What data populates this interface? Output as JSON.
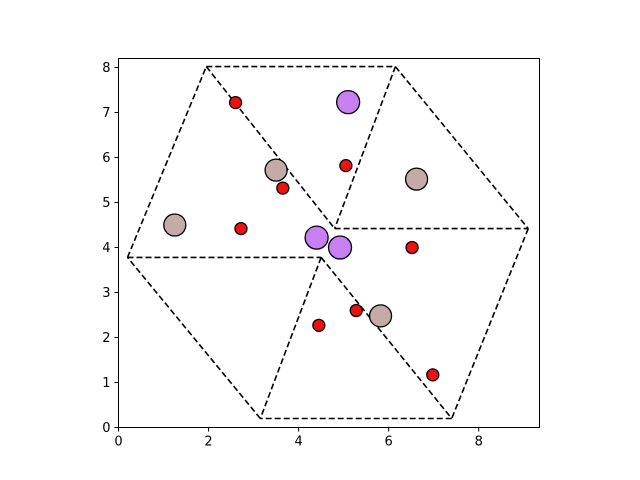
{
  "chart_data": {
    "type": "scatter",
    "title": "",
    "xlabel": "",
    "ylabel": "",
    "xlim": [
      0,
      9.35
    ],
    "ylim": [
      0,
      8.2
    ],
    "xticks": [
      0,
      2,
      4,
      6,
      8
    ],
    "yticks": [
      0,
      1,
      2,
      3,
      4,
      5,
      6,
      7,
      8
    ],
    "grid": false,
    "legend": "none",
    "colors": {
      "small_point": "#ee1111",
      "large_tan": "#c4aaa8",
      "large_purple": "#c77ff2",
      "edge": "#000000",
      "lines": "#000000"
    },
    "dashed_segments": [
      [
        [
          1.95,
          8.02
        ],
        [
          6.15,
          8.02
        ]
      ],
      [
        [
          6.15,
          8.02
        ],
        [
          9.1,
          4.42
        ]
      ],
      [
        [
          9.1,
          4.42
        ],
        [
          7.4,
          0.2
        ]
      ],
      [
        [
          7.4,
          0.2
        ],
        [
          3.15,
          0.2
        ]
      ],
      [
        [
          3.15,
          0.2
        ],
        [
          0.2,
          3.78
        ]
      ],
      [
        [
          0.2,
          3.78
        ],
        [
          1.95,
          8.02
        ]
      ],
      [
        [
          1.95,
          8.02
        ],
        [
          4.8,
          4.42
        ]
      ],
      [
        [
          6.15,
          8.02
        ],
        [
          4.8,
          4.42
        ]
      ],
      [
        [
          4.8,
          4.42
        ],
        [
          9.1,
          4.42
        ]
      ],
      [
        [
          4.5,
          3.78
        ],
        [
          7.4,
          0.2
        ]
      ],
      [
        [
          4.5,
          3.78
        ],
        [
          3.15,
          0.2
        ]
      ],
      [
        [
          0.2,
          3.78
        ],
        [
          4.5,
          3.78
        ]
      ]
    ],
    "series": [
      {
        "kind": "small",
        "points": [
          [
            2.6,
            7.22
          ],
          [
            5.05,
            5.82
          ],
          [
            3.65,
            5.32
          ],
          [
            2.72,
            4.42
          ],
          [
            6.52,
            4.0
          ],
          [
            5.28,
            2.6
          ],
          [
            4.45,
            2.27
          ],
          [
            6.98,
            1.17
          ]
        ]
      },
      {
        "kind": "large_tan",
        "points": [
          [
            3.5,
            5.72
          ],
          [
            6.62,
            5.52
          ],
          [
            1.25,
            4.5
          ],
          [
            5.82,
            2.48
          ]
        ]
      },
      {
        "kind": "large_purple",
        "points": [
          [
            5.1,
            7.23
          ],
          [
            4.4,
            4.22
          ],
          [
            4.92,
            4.0
          ]
        ]
      }
    ]
  }
}
